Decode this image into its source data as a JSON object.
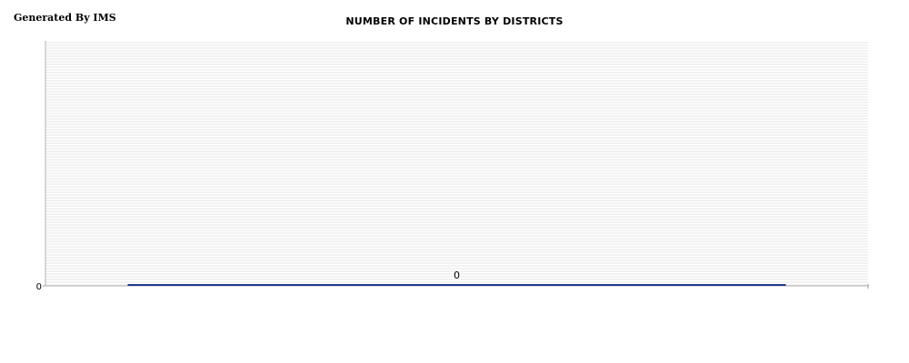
{
  "watermark": "Generated By IMS",
  "chart_data": {
    "type": "bar",
    "title": "NUMBER OF INCIDENTS BY DISTRICTS",
    "categories": [
      ""
    ],
    "series": [
      {
        "values": [
          0
        ]
      }
    ],
    "data_labels": [
      "0"
    ],
    "ytick_labels": [
      "0"
    ],
    "xlabel": "",
    "ylabel": "",
    "ylim": [
      0,
      1
    ],
    "grid": true,
    "legend": "none",
    "colors": {
      "bar": "#1f3a93",
      "plot_bg": "#ffffff",
      "grid": "#e6e6e6",
      "axis": "#999999"
    }
  }
}
